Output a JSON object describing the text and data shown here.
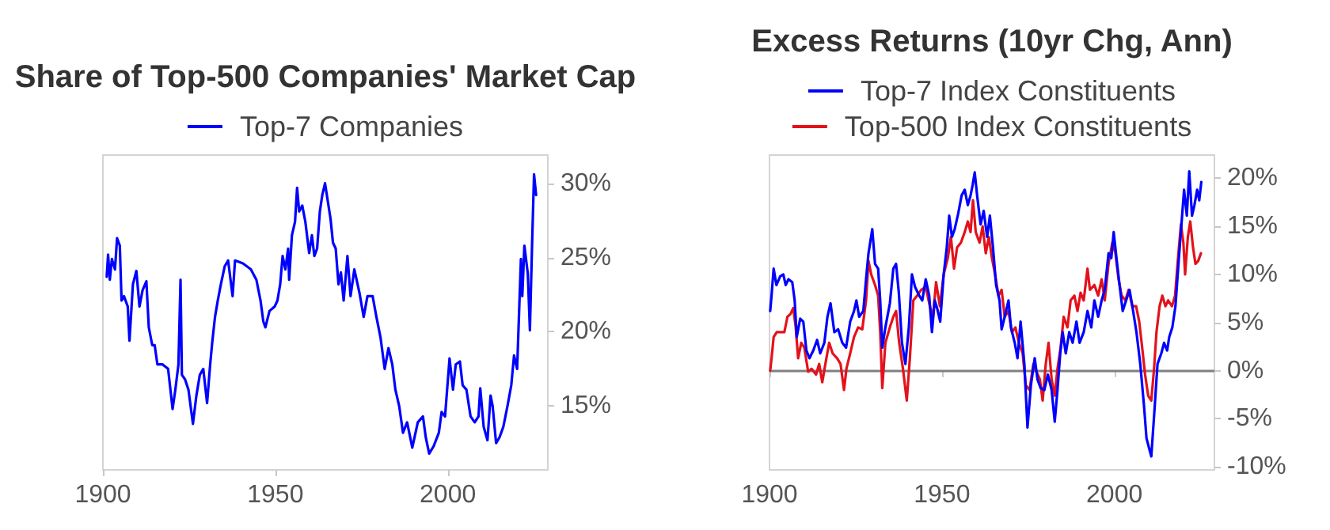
{
  "chart_data": [
    {
      "type": "line",
      "title": "Share of Top-500 Companies' Market Cap",
      "series": [
        {
          "name": "Top-7 Companies",
          "color": "#0000ff",
          "x": [
            1901.1,
            1901.5,
            1902.0,
            1902.6,
            1903.5,
            1904.1,
            1904.9,
            1905.4,
            1906.1,
            1907.2,
            1907.7,
            1908.7,
            1909.7,
            1910.6,
            1911.5,
            1912.6,
            1913.3,
            1914.3,
            1915.0,
            1915.8,
            1917.3,
            1918.9,
            1920.2,
            1921.0,
            1921.9,
            1922.5,
            1922.9,
            1923.8,
            1924.8,
            1926.1,
            1927.1,
            1928.1,
            1929.1,
            1930.2,
            1931.1,
            1931.7,
            1932.5,
            1933.3,
            1934.2,
            1935.3,
            1936.3,
            1937.6,
            1938.3,
            1940.6,
            1942.9,
            1944.5,
            1945.7,
            1946.5,
            1947.1,
            1948.3,
            1949.8,
            1950.6,
            1951.4,
            1952.1,
            1952.9,
            1953.7,
            1954.0,
            1954.8,
            1955.7,
            1956.3,
            1956.9,
            1957.8,
            1958.7,
            1959.8,
            1960.6,
            1961.3,
            1962.1,
            1962.9,
            1963.6,
            1964.4,
            1965.2,
            1966.0,
            1966.7,
            1967.5,
            1968.3,
            1969.0,
            1969.8,
            1970.9,
            1971.8,
            1972.9,
            1974.4,
            1975.6,
            1976.7,
            1978.2,
            1979.3,
            1980.5,
            1981.7,
            1982.8,
            1983.9,
            1984.8,
            1985.9,
            1987.0,
            1988.2,
            1989.7,
            1991.3,
            1992.8,
            1993.6,
            1994.6,
            1995.9,
            1997.4,
            1998.2,
            1999.2,
            2000.5,
            2001.5,
            2002.3,
            2003.5,
            2004.3,
            2005.4,
            2006.6,
            2007.8,
            2008.9,
            2009.4,
            2010.4,
            2011.5,
            2012.4,
            2013.0,
            2014.0,
            2015.0,
            2016.1,
            2017.3,
            2018.4,
            2019.2,
            2020.1,
            2021.2,
            2021.6,
            2022.2,
            2023.2,
            2023.8,
            2024.4,
            2025.0,
            2025.6
          ],
          "values": [
            23.7,
            25.2,
            23.5,
            24.9,
            24.2,
            26.3,
            25.8,
            22.1,
            22.4,
            21.7,
            19.4,
            23.2,
            24.1,
            21.7,
            22.8,
            23.4,
            20.3,
            19.1,
            19.1,
            17.8,
            17.8,
            17.5,
            14.8,
            16.1,
            17.8,
            23.5,
            17.1,
            16.8,
            16.1,
            13.8,
            15.7,
            17.1,
            17.5,
            15.2,
            17.8,
            19.3,
            21.0,
            22.1,
            23.2,
            24.4,
            24.8,
            22.4,
            24.8,
            24.6,
            24.2,
            23.5,
            22.1,
            20.7,
            20.3,
            21.4,
            21.7,
            22.1,
            23.2,
            25.1,
            24.2,
            25.6,
            23.5,
            26.5,
            27.4,
            29.7,
            28.1,
            28.5,
            27.4,
            25.3,
            26.5,
            25.1,
            25.6,
            28.1,
            29.2,
            30.0,
            28.8,
            27.6,
            26.0,
            25.6,
            23.2,
            24.0,
            22.1,
            25.1,
            22.4,
            24.2,
            22.6,
            21.0,
            22.4,
            22.4,
            21.0,
            19.6,
            17.5,
            18.9,
            17.8,
            16.1,
            15.0,
            13.2,
            13.9,
            12.2,
            13.9,
            14.3,
            12.9,
            11.8,
            12.3,
            13.2,
            14.6,
            14.3,
            18.2,
            16.1,
            17.8,
            18.0,
            16.4,
            16.1,
            14.3,
            13.9,
            14.3,
            16.2,
            13.6,
            12.7,
            15.7,
            15.0,
            12.5,
            12.9,
            13.6,
            15.0,
            16.4,
            18.4,
            17.5,
            24.9,
            22.4,
            25.8,
            23.9,
            20.1,
            25.6,
            30.6,
            29.2
          ]
        }
      ],
      "xlim": [
        1900,
        2029
      ],
      "xticks": [
        1900,
        1950,
        2000
      ],
      "ylim": [
        10.7,
        31.9
      ],
      "yticks": [
        {
          "value": 15,
          "label": "15%"
        },
        {
          "value": 20,
          "label": "20%"
        },
        {
          "value": 25,
          "label": "25%"
        },
        {
          "value": 30,
          "label": "30%"
        }
      ],
      "grid": false,
      "legend": "top",
      "marker": "none",
      "line_style": "solid"
    },
    {
      "type": "line",
      "title": "Excess Returns (10yr Chg, Ann)",
      "series": [
        {
          "name": "Top-7 Index Constituents",
          "color": "#0000ff",
          "x": [
            1900.2,
            1900.6,
            1901.2,
            1902.0,
            1903.1,
            1904.0,
            1904.7,
            1905.5,
            1906.6,
            1907.3,
            1907.9,
            1908.9,
            1909.8,
            1910.7,
            1911.6,
            1912.7,
            1913.8,
            1914.7,
            1915.9,
            1916.8,
            1917.7,
            1918.8,
            1919.9,
            1921.1,
            1922.2,
            1923.4,
            1924.5,
            1925.2,
            1926.0,
            1927.2,
            1928.0,
            1928.7,
            1929.8,
            1930.6,
            1931.5,
            1932.1,
            1932.7,
            1933.6,
            1934.9,
            1935.9,
            1936.7,
            1937.5,
            1938.4,
            1939.4,
            1940.4,
            1941.3,
            1942.2,
            1943.4,
            1944.3,
            1945.3,
            1946.3,
            1947.1,
            1947.9,
            1948.6,
            1949.5,
            1950.5,
            1951.4,
            1952.1,
            1952.9,
            1953.7,
            1954.7,
            1955.7,
            1956.6,
            1957.5,
            1958.3,
            1958.9,
            1959.5,
            1960.2,
            1961.2,
            1962.1,
            1963.1,
            1963.9,
            1964.8,
            1965.7,
            1966.7,
            1967.3,
            1968.2,
            1969.3,
            1970.0,
            1971.1,
            1971.9,
            1972.8,
            1973.9,
            1974.8,
            1975.8,
            1976.9,
            1977.7,
            1978.6,
            1979.7,
            1980.7,
            1981.8,
            1982.7,
            1983.5,
            1984.3,
            1985.0,
            1985.9,
            1986.9,
            1987.9,
            1989.0,
            1989.9,
            1991.1,
            1992.2,
            1993.3,
            1994.2,
            1995.3,
            1996.3,
            1997.2,
            1998.3,
            1999.1,
            1999.8,
            2000.6,
            2001.5,
            2002.4,
            2003.4,
            2004.4,
            2005.2,
            2006.4,
            2007.5,
            2008.6,
            2009.3,
            2010.1,
            2010.7,
            2011.6,
            2012.5,
            2013.6,
            2014.4,
            2015.3,
            2015.9,
            2016.8,
            2017.7,
            2018.7,
            2019.4,
            2020.2,
            2021.0,
            2021.7,
            2022.5,
            2023.2,
            2024.0,
            2024.6,
            2025.2
          ],
          "values": [
            6.2,
            7.8,
            10.6,
            8.9,
            9.8,
            10.0,
            8.9,
            9.5,
            9.2,
            7.3,
            3.5,
            5.4,
            5.1,
            2.1,
            1.3,
            2.1,
            3.2,
            1.8,
            2.9,
            5.6,
            7.0,
            4.0,
            4.3,
            2.9,
            2.4,
            5.1,
            6.2,
            7.3,
            5.6,
            6.2,
            9.5,
            12.2,
            14.7,
            11.1,
            10.6,
            7.3,
            2.4,
            4.5,
            7.0,
            10.6,
            11.1,
            8.1,
            2.9,
            0.7,
            4.5,
            10.0,
            8.7,
            7.8,
            7.3,
            9.5,
            7.8,
            4.0,
            7.3,
            6.5,
            5.1,
            10.0,
            12.8,
            16.1,
            13.9,
            14.7,
            16.3,
            18.2,
            18.8,
            17.2,
            18.2,
            19.3,
            20.6,
            18.2,
            15.2,
            16.6,
            13.9,
            16.1,
            12.8,
            8.9,
            7.3,
            4.3,
            5.6,
            7.3,
            4.5,
            2.9,
            1.3,
            5.1,
            0.7,
            -5.9,
            -1.5,
            1.3,
            -0.9,
            -1.8,
            -2.0,
            -0.4,
            -2.0,
            -5.3,
            -2.0,
            1.8,
            4.0,
            1.8,
            4.0,
            2.9,
            5.1,
            2.9,
            4.0,
            6.2,
            4.5,
            7.3,
            5.6,
            7.3,
            8.4,
            12.2,
            11.7,
            14.4,
            11.7,
            8.9,
            6.2,
            7.3,
            8.4,
            6.7,
            4.0,
            0.7,
            -3.7,
            -7.0,
            -8.1,
            -8.9,
            -4.2,
            0.7,
            1.8,
            2.9,
            2.1,
            3.5,
            4.5,
            6.7,
            11.7,
            15.0,
            18.8,
            16.1,
            20.7,
            16.1,
            17.2,
            18.8,
            17.7,
            19.6
          ]
        },
        {
          "name": "Top-500 Index Constituents",
          "color": "#e3121b",
          "x": [
            1900.2,
            1900.6,
            1901.2,
            1902.1,
            1903.1,
            1904.3,
            1905.2,
            1906.1,
            1906.9,
            1907.6,
            1908.3,
            1909.2,
            1910.1,
            1911.2,
            1912.2,
            1913.5,
            1914.4,
            1915.3,
            1916.2,
            1917.3,
            1918.3,
            1919.6,
            1920.6,
            1921.6,
            1922.3,
            1923.4,
            1924.5,
            1925.7,
            1926.9,
            1928.0,
            1928.7,
            1929.5,
            1930.6,
            1931.5,
            1932.1,
            1932.7,
            1933.6,
            1934.9,
            1935.9,
            1936.7,
            1937.6,
            1938.7,
            1939.8,
            1940.7,
            1941.7,
            1942.8,
            1944.0,
            1945.3,
            1946.5,
            1947.4,
            1948.3,
            1949.4,
            1950.5,
            1951.7,
            1952.6,
            1953.5,
            1954.4,
            1955.5,
            1956.6,
            1957.5,
            1958.3,
            1959.0,
            1959.8,
            1960.9,
            1961.8,
            1962.7,
            1963.6,
            1964.5,
            1965.4,
            1966.4,
            1967.3,
            1968.2,
            1969.3,
            1970.3,
            1971.3,
            1972.3,
            1973.4,
            1974.3,
            1975.4,
            1976.5,
            1977.4,
            1978.4,
            1979.2,
            1980.1,
            1980.9,
            1981.8,
            1982.7,
            1983.5,
            1984.4,
            1985.3,
            1986.4,
            1987.3,
            1988.4,
            1989.3,
            1990.2,
            1991.1,
            1992.2,
            1992.9,
            1994.2,
            1995.3,
            1996.3,
            1997.2,
            1998.3,
            1999.4,
            2000.3,
            2001.2,
            2002.1,
            2003.2,
            2004.1,
            2005.2,
            2006.3,
            2007.2,
            2007.9,
            2008.9,
            2009.8,
            2010.7,
            2011.5,
            2012.2,
            2013.1,
            2013.9,
            2014.8,
            2015.6,
            2016.7,
            2017.6,
            2018.3,
            2019.3,
            2020.0,
            2020.5,
            2021.3,
            2022.0,
            2022.8,
            2023.5,
            2024.3,
            2025.1
          ],
          "values": [
            0.0,
            1.3,
            3.5,
            4.0,
            4.0,
            4.0,
            5.6,
            5.9,
            6.5,
            4.5,
            1.3,
            2.9,
            2.4,
            -0.1,
            0.2,
            -0.4,
            0.7,
            -1.2,
            0.7,
            2.9,
            1.8,
            1.3,
            0.7,
            -2.0,
            0.2,
            1.8,
            3.5,
            4.5,
            4.3,
            7.3,
            11.4,
            10.0,
            8.9,
            7.8,
            4.0,
            -1.8,
            2.9,
            4.5,
            5.6,
            6.2,
            2.9,
            0.2,
            -3.1,
            1.3,
            7.3,
            7.8,
            8.4,
            8.7,
            6.7,
            5.6,
            9.2,
            6.7,
            10.0,
            11.7,
            13.9,
            10.6,
            12.8,
            13.3,
            14.4,
            15.5,
            14.4,
            17.7,
            14.4,
            13.3,
            15.0,
            12.2,
            13.9,
            11.7,
            10.0,
            7.8,
            8.4,
            5.6,
            6.2,
            4.0,
            4.5,
            2.9,
            1.8,
            -1.5,
            -2.0,
            0.7,
            -0.1,
            -0.9,
            -3.1,
            0.7,
            2.9,
            -0.9,
            -2.6,
            0.2,
            2.4,
            5.6,
            4.5,
            7.3,
            7.8,
            6.2,
            8.1,
            7.3,
            10.6,
            8.4,
            8.9,
            7.8,
            9.5,
            7.3,
            11.1,
            13.3,
            12.2,
            9.5,
            7.8,
            7.3,
            8.4,
            6.7,
            6.7,
            5.1,
            2.9,
            -0.4,
            -2.6,
            -3.1,
            0.2,
            4.0,
            6.7,
            7.8,
            6.7,
            7.3,
            6.7,
            7.8,
            11.1,
            15.2,
            13.3,
            10.0,
            13.9,
            15.5,
            12.8,
            11.1,
            11.4,
            12.2
          ]
        }
      ],
      "xlim": [
        1900,
        2029
      ],
      "xticks": [
        1900,
        1950,
        2000
      ],
      "ylim": [
        -10.3,
        22.4
      ],
      "yticks": [
        {
          "value": -10,
          "label": "-10%"
        },
        {
          "value": -5,
          "label": "-5%"
        },
        {
          "value": 0,
          "label": "0%"
        },
        {
          "value": 5,
          "label": "5%"
        },
        {
          "value": 10,
          "label": "10%"
        },
        {
          "value": 15,
          "label": "15%"
        },
        {
          "value": 20,
          "label": "20%"
        }
      ],
      "ref_lines": [
        {
          "axis": "y",
          "value": 0,
          "color": "#808080"
        }
      ],
      "grid": false,
      "legend": "top",
      "marker": "none",
      "line_style": "solid"
    }
  ]
}
